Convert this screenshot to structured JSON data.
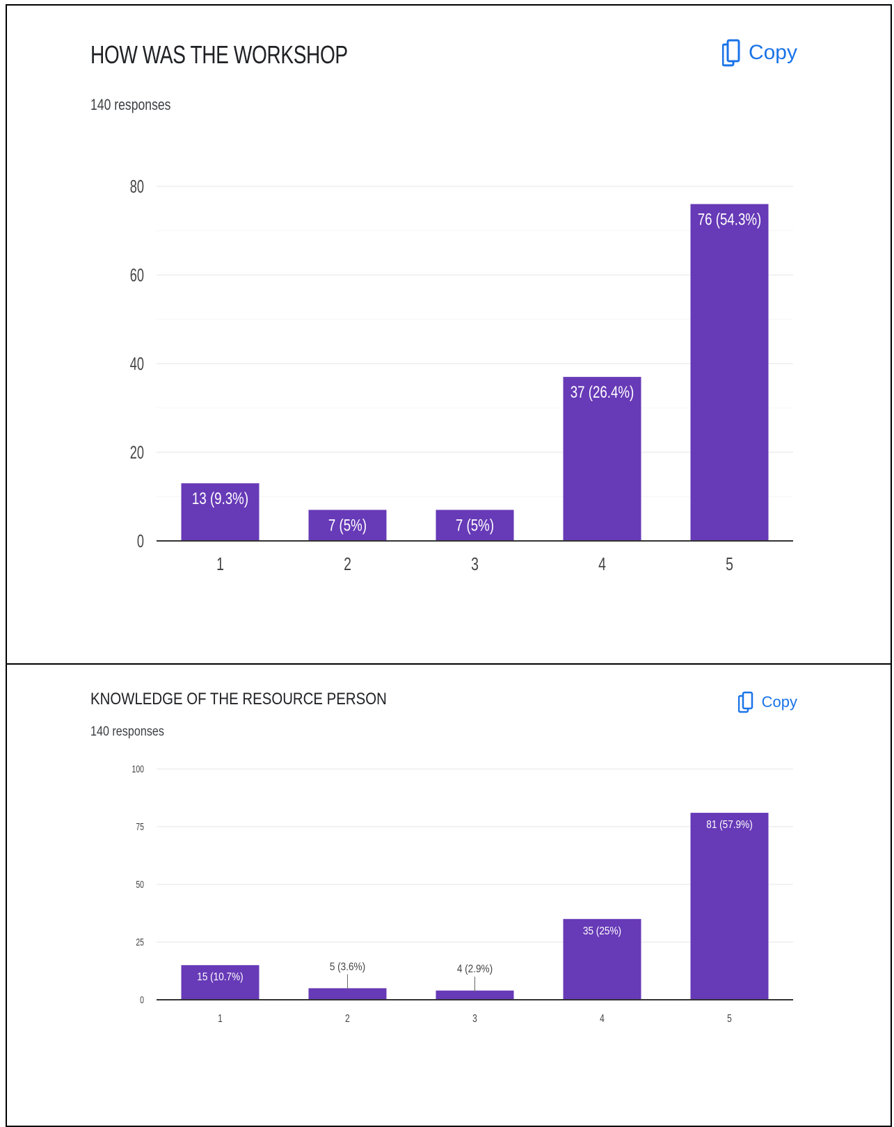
{
  "copy_label": "Copy",
  "colors": {
    "bar": "#673ab7",
    "copy": "#1a73e8"
  },
  "chart_data": [
    {
      "type": "bar",
      "title": "HOW WAS THE WORKSHOP",
      "subtitle": "140 responses",
      "categories": [
        "1",
        "2",
        "3",
        "4",
        "5"
      ],
      "values": [
        13,
        7,
        7,
        37,
        76
      ],
      "labels": [
        "13 (9.3%)",
        "7 (5%)",
        "7 (5%)",
        "37 (26.4%)",
        "76 (54.3%)"
      ],
      "yticks": [
        0,
        20,
        40,
        60,
        80
      ],
      "ylim": [
        0,
        80
      ],
      "grid": true,
      "legend": "none"
    },
    {
      "type": "bar",
      "title": "KNOWLEDGE OF THE RESOURCE PERSON",
      "subtitle": "140 responses",
      "categories": [
        "1",
        "2",
        "3",
        "4",
        "5"
      ],
      "values": [
        15,
        5,
        4,
        35,
        81
      ],
      "labels": [
        "15 (10.7%)",
        "5 (3.6%)",
        "4 (2.9%)",
        "35 (25%)",
        "81 (57.9%)"
      ],
      "yticks": [
        0,
        25,
        50,
        75,
        100
      ],
      "ylim": [
        0,
        100
      ],
      "grid": true,
      "legend": "none"
    }
  ]
}
